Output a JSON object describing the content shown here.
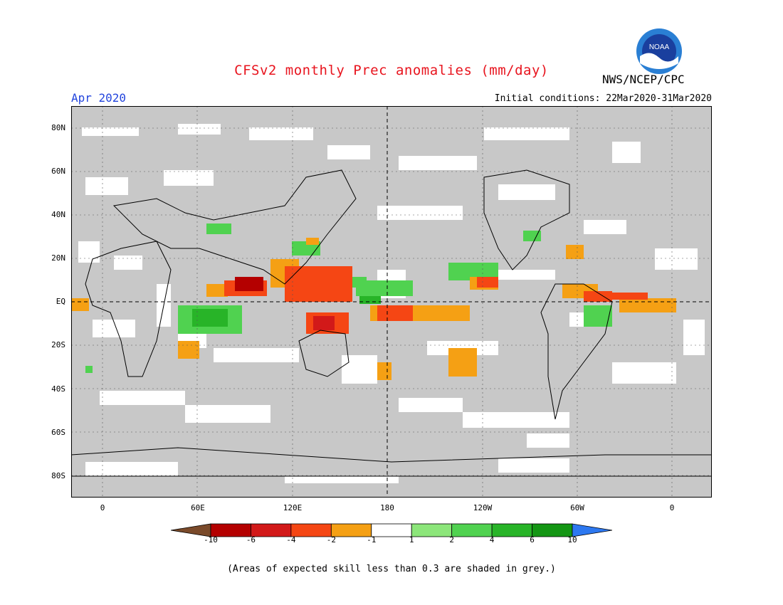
{
  "header": {
    "title": "CFSv2 monthly Prec anomalies (mm/day)",
    "org": "NWS/NCEP/CPC",
    "period": "Apr 2020",
    "initial_conditions": "Initial conditions: 22Mar2020-31Mar2020",
    "logo_text": "NOAA"
  },
  "axes": {
    "y_ticks": [
      "80N",
      "60N",
      "40N",
      "20N",
      "EQ",
      "20S",
      "40S",
      "60S",
      "80S"
    ],
    "x_ticks": [
      "0",
      "60E",
      "120E",
      "180",
      "120W",
      "60W",
      "0"
    ]
  },
  "colorbar": {
    "labels": [
      "-10",
      "-6",
      "-4",
      "-2",
      "-1",
      "1",
      "2",
      "4",
      "6",
      "10"
    ],
    "colors": [
      "#7a4a2a",
      "#b40000",
      "#d21919",
      "#f54614",
      "#f5a014",
      "#ffffff",
      "#8ce67a",
      "#50d250",
      "#28b428",
      "#149614",
      "#2d78f0"
    ]
  },
  "footnote": "(Areas of expected skill less than 0.3 are shaded in grey.)",
  "colors": {
    "skill_grey": "#c8c8c8",
    "title_red": "#e8141e",
    "period_blue": "#2244dd"
  }
}
